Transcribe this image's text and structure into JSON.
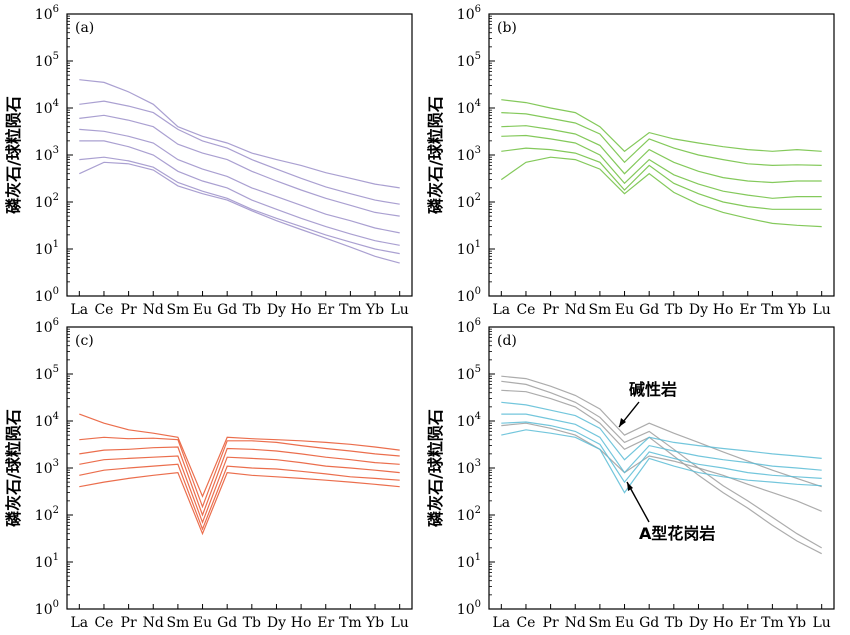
{
  "chart_data": [
    {
      "type": "line",
      "panel_label": "(a)",
      "ylabel": "磷灰石/球粒陨石",
      "scale": "log",
      "ylim": [
        1,
        1000000
      ],
      "yticks": [
        "10",
        "10",
        "10",
        "10",
        "10",
        "10",
        "10"
      ],
      "ytick_exponents": [
        "0",
        "1",
        "2",
        "3",
        "4",
        "5",
        "6"
      ],
      "categories": [
        "La",
        "Ce",
        "Pr",
        "Nd",
        "Sm",
        "Eu",
        "Gd",
        "Tb",
        "Dy",
        "Ho",
        "Er",
        "Tm",
        "Yb",
        "Lu"
      ],
      "color": "#9b8fc9",
      "series": [
        {
          "values": [
            40000,
            35000,
            22000,
            12000,
            4000,
            2500,
            1800,
            1100,
            800,
            600,
            420,
            320,
            240,
            200
          ]
        },
        {
          "values": [
            12000,
            14000,
            11000,
            8000,
            3500,
            2000,
            1400,
            800,
            500,
            320,
            210,
            150,
            110,
            90
          ]
        },
        {
          "values": [
            6000,
            7000,
            5500,
            4000,
            1700,
            1100,
            800,
            450,
            280,
            180,
            120,
            85,
            60,
            50
          ]
        },
        {
          "values": [
            3500,
            3200,
            2500,
            1800,
            800,
            500,
            350,
            200,
            130,
            85,
            55,
            40,
            28,
            22
          ]
        },
        {
          "values": [
            2000,
            2000,
            1500,
            1000,
            450,
            280,
            200,
            110,
            70,
            45,
            30,
            21,
            15,
            12
          ]
        },
        {
          "values": [
            800,
            900,
            750,
            550,
            260,
            170,
            120,
            70,
            45,
            30,
            20,
            14,
            10,
            8
          ]
        },
        {
          "values": [
            400,
            700,
            650,
            480,
            220,
            150,
            110,
            65,
            40,
            26,
            17,
            11,
            7,
            5
          ]
        }
      ]
    },
    {
      "type": "line",
      "panel_label": "(b)",
      "ylabel": "磷灰石/球粒陨石",
      "scale": "log",
      "ylim": [
        1,
        1000000
      ],
      "yticks": [
        "10",
        "10",
        "10",
        "10",
        "10",
        "10",
        "10"
      ],
      "ytick_exponents": [
        "0",
        "1",
        "2",
        "3",
        "4",
        "5",
        "6"
      ],
      "categories": [
        "La",
        "Ce",
        "Pr",
        "Nd",
        "Sm",
        "Eu",
        "Gd",
        "Tb",
        "Dy",
        "Ho",
        "Er",
        "Tm",
        "Yb",
        "Lu"
      ],
      "color": "#6fbf3e",
      "series": [
        {
          "values": [
            15000,
            13000,
            10000,
            8000,
            4000,
            1200,
            3000,
            2200,
            1800,
            1500,
            1300,
            1200,
            1300,
            1200
          ]
        },
        {
          "values": [
            8000,
            7500,
            6000,
            4800,
            2800,
            700,
            2200,
            1400,
            1000,
            800,
            650,
            600,
            620,
            600
          ]
        },
        {
          "values": [
            4000,
            4200,
            3500,
            2800,
            1600,
            400,
            1300,
            700,
            450,
            330,
            280,
            260,
            280,
            280
          ]
        },
        {
          "values": [
            2500,
            2600,
            2200,
            1800,
            1000,
            250,
            800,
            380,
            240,
            170,
            140,
            120,
            130,
            130
          ]
        },
        {
          "values": [
            1200,
            1400,
            1300,
            1100,
            700,
            180,
            600,
            250,
            150,
            100,
            80,
            70,
            70,
            70
          ]
        },
        {
          "values": [
            300,
            700,
            900,
            800,
            500,
            150,
            400,
            160,
            90,
            60,
            45,
            35,
            32,
            30
          ]
        }
      ]
    },
    {
      "type": "line",
      "panel_label": "(c)",
      "ylabel": "磷灰石/球粒陨石",
      "scale": "log",
      "ylim": [
        1,
        1000000
      ],
      "yticks": [
        "10",
        "10",
        "10",
        "10",
        "10",
        "10",
        "10"
      ],
      "ytick_exponents": [
        "0",
        "1",
        "2",
        "3",
        "4",
        "5",
        "6"
      ],
      "categories": [
        "La",
        "Ce",
        "Pr",
        "Nd",
        "Sm",
        "Eu",
        "Gd",
        "Tb",
        "Dy",
        "Ho",
        "Er",
        "Tm",
        "Yb",
        "Lu"
      ],
      "color": "#e8552e",
      "series": [
        {
          "values": [
            14000,
            9000,
            6500,
            5500,
            4500,
            250,
            4500,
            4200,
            4000,
            3800,
            3500,
            3200,
            2800,
            2400
          ]
        },
        {
          "values": [
            4000,
            4500,
            4200,
            4300,
            4000,
            150,
            3800,
            3800,
            3500,
            3000,
            2600,
            2300,
            2000,
            1800
          ]
        },
        {
          "values": [
            2000,
            2400,
            2500,
            2700,
            2800,
            100,
            2600,
            2500,
            2300,
            2000,
            1700,
            1500,
            1300,
            1200
          ]
        },
        {
          "values": [
            1200,
            1500,
            1600,
            1700,
            1800,
            70,
            1700,
            1600,
            1500,
            1300,
            1100,
            1000,
            900,
            800
          ]
        },
        {
          "values": [
            700,
            900,
            1000,
            1100,
            1200,
            50,
            1100,
            1000,
            950,
            850,
            750,
            650,
            600,
            550
          ]
        },
        {
          "values": [
            400,
            500,
            600,
            700,
            800,
            40,
            800,
            700,
            650,
            600,
            550,
            500,
            450,
            400
          ]
        }
      ]
    },
    {
      "type": "line",
      "panel_label": "(d)",
      "ylabel": "磷灰石/球粒陨石",
      "scale": "log",
      "ylim": [
        1,
        1000000
      ],
      "yticks": [
        "10",
        "10",
        "10",
        "10",
        "10",
        "10",
        "10"
      ],
      "ytick_exponents": [
        "0",
        "1",
        "2",
        "3",
        "4",
        "5",
        "6"
      ],
      "categories": [
        "La",
        "Ce",
        "Pr",
        "Nd",
        "Sm",
        "Eu",
        "Gd",
        "Tb",
        "Dy",
        "Ho",
        "Er",
        "Tm",
        "Yb",
        "Lu"
      ],
      "annotations": [
        "碱性岩",
        "A型花岗岩"
      ],
      "series": [
        {
          "group": "碱性岩",
          "color": "#9e9e9e",
          "values": [
            90000,
            80000,
            55000,
            35000,
            18000,
            5000,
            9000,
            5500,
            3500,
            2200,
            1400,
            900,
            600,
            400
          ]
        },
        {
          "group": "碱性岩",
          "color": "#9e9e9e",
          "values": [
            70000,
            60000,
            40000,
            25000,
            12000,
            3500,
            6000,
            2500,
            1000,
            420,
            200,
            90,
            40,
            20
          ]
        },
        {
          "group": "碱性岩",
          "color": "#9e9e9e",
          "values": [
            45000,
            42000,
            30000,
            20000,
            9000,
            2500,
            4500,
            1800,
            700,
            300,
            140,
            60,
            28,
            15
          ]
        },
        {
          "group": "碱性岩",
          "color": "#9e9e9e",
          "values": [
            8000,
            9000,
            7000,
            5000,
            2500,
            800,
            1800,
            1400,
            1000,
            700,
            450,
            300,
            200,
            120
          ]
        },
        {
          "group": "A型花岗岩",
          "color": "#5bbcd6",
          "values": [
            25000,
            22000,
            17000,
            13000,
            7000,
            1500,
            4500,
            3500,
            3000,
            2600,
            2300,
            2000,
            1800,
            1600
          ]
        },
        {
          "group": "A型花岗岩",
          "color": "#5bbcd6",
          "values": [
            14000,
            14000,
            11000,
            8500,
            4500,
            800,
            3000,
            2300,
            1800,
            1500,
            1300,
            1100,
            1000,
            900
          ]
        },
        {
          "group": "A型花岗岩",
          "color": "#5bbcd6",
          "values": [
            9000,
            9500,
            8000,
            6000,
            3200,
            500,
            2200,
            1600,
            1200,
            1000,
            800,
            700,
            650,
            600
          ]
        },
        {
          "group": "A型花岗岩",
          "color": "#5bbcd6",
          "values": [
            5000,
            6500,
            5500,
            4500,
            2500,
            300,
            1600,
            1100,
            800,
            650,
            550,
            500,
            450,
            420
          ]
        }
      ]
    }
  ]
}
